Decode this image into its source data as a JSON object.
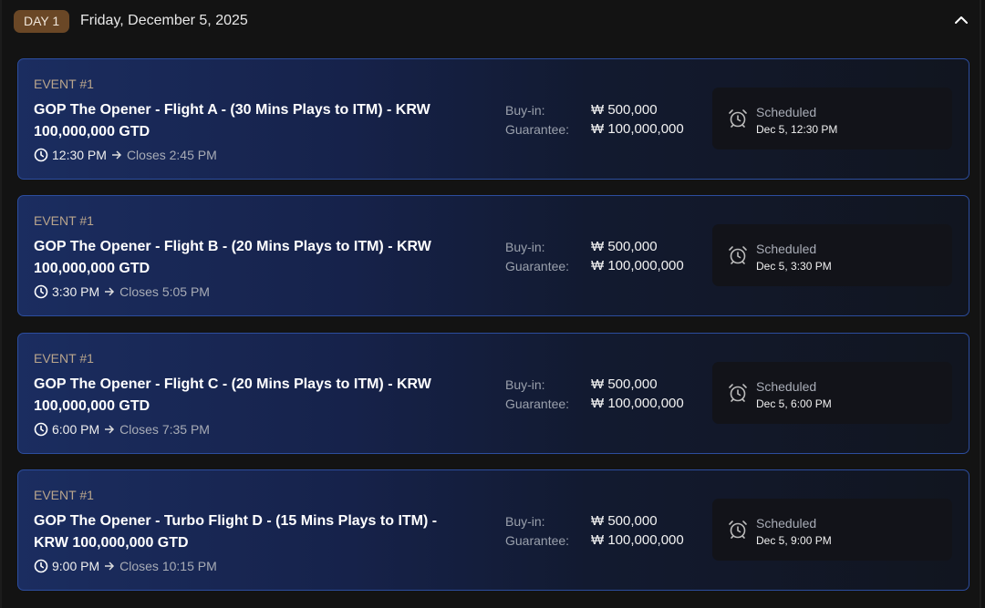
{
  "day": {
    "badge": "DAY 1",
    "date": "Friday, December 5, 2025",
    "collapse_icon": "chevron-up-icon"
  },
  "labels": {
    "buy_in": "Buy-in:",
    "guarantee": "Guarantee:"
  },
  "colors": {
    "badge": "#6a4726",
    "card_border": "#2c4d9e",
    "card_gradient_start": "#1b2d60",
    "background": "#131313"
  },
  "events": [
    {
      "number": "EVENT #1",
      "title": "GOP The Opener - Flight A - (30 Mins Plays to ITM) - KRW 100,000,000 GTD",
      "start": "12:30 PM",
      "closes": "Closes 2:45 PM",
      "buy_in": "₩ 500,000",
      "guarantee": "₩ 100,000,000",
      "status": "Scheduled",
      "status_date": "Dec 5, 12:30 PM"
    },
    {
      "number": "EVENT #1",
      "title": "GOP The Opener - Flight B - (20 Mins Plays to ITM) - KRW 100,000,000 GTD",
      "start": "3:30 PM",
      "closes": "Closes 5:05 PM",
      "buy_in": "₩ 500,000",
      "guarantee": "₩ 100,000,000",
      "status": "Scheduled",
      "status_date": "Dec 5, 3:30 PM"
    },
    {
      "number": "EVENT #1",
      "title": "GOP The Opener - Flight C - (20 Mins Plays to ITM) - KRW 100,000,000 GTD",
      "start": "6:00 PM",
      "closes": "Closes 7:35 PM",
      "buy_in": "₩ 500,000",
      "guarantee": "₩ 100,000,000",
      "status": "Scheduled",
      "status_date": "Dec 5, 6:00 PM"
    },
    {
      "number": "EVENT #1",
      "title": "GOP The Opener - Turbo Flight D - (15 Mins Plays to ITM) - KRW 100,000,000 GTD",
      "start": "9:00 PM",
      "closes": "Closes 10:15 PM",
      "buy_in": "₩ 500,000",
      "guarantee": "₩ 100,000,000",
      "status": "Scheduled",
      "status_date": "Dec 5, 9:00 PM"
    }
  ]
}
